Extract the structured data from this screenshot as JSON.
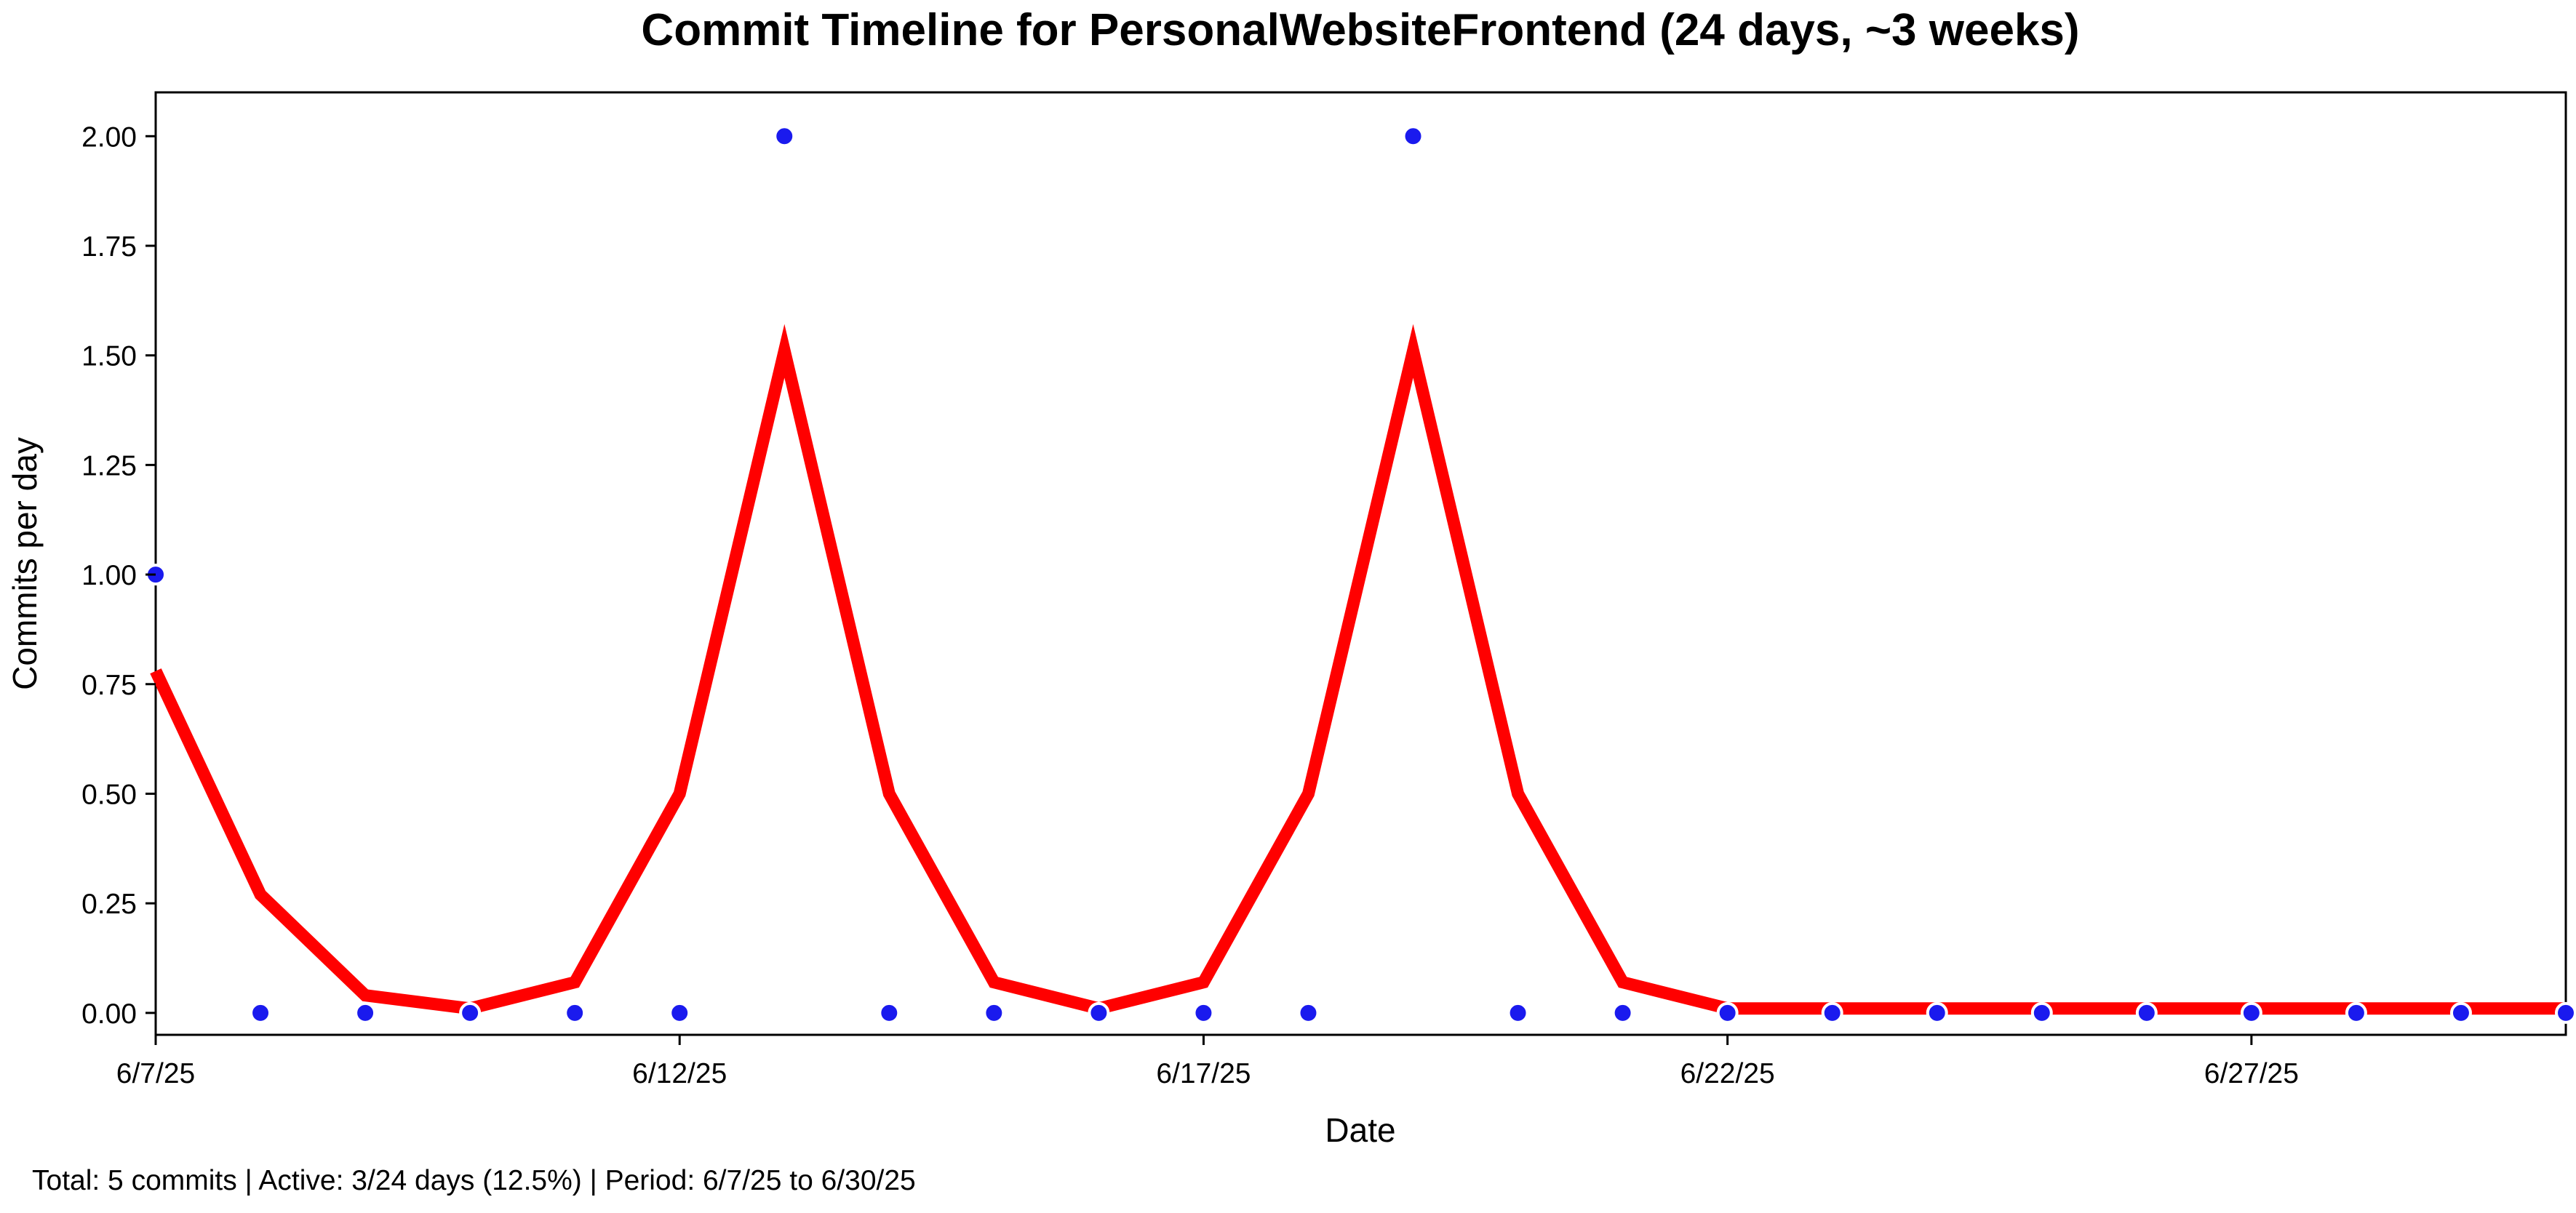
{
  "chart_data": {
    "type": "line",
    "title": "Commit Timeline for PersonalWebsiteFrontend (24 days, ~3 weeks)",
    "xlabel": "Date",
    "ylabel": "Commits per day",
    "x": [
      "6/7/25",
      "6/8/25",
      "6/9/25",
      "6/10/25",
      "6/11/25",
      "6/12/25",
      "6/13/25",
      "6/14/25",
      "6/15/25",
      "6/16/25",
      "6/17/25",
      "6/18/25",
      "6/19/25",
      "6/20/25",
      "6/21/25",
      "6/22/25",
      "6/23/25",
      "6/24/25",
      "6/25/25",
      "6/26/25",
      "6/27/25",
      "6/28/25",
      "6/29/25",
      "6/30/25"
    ],
    "xtick_labels": [
      "6/7/25",
      "6/12/25",
      "6/17/25",
      "6/22/25",
      "6/27/25"
    ],
    "ylim": [
      -0.05,
      2.1
    ],
    "yticks": [
      0.0,
      0.25,
      0.5,
      0.75,
      1.0,
      1.25,
      1.5,
      1.75,
      2.0
    ],
    "ytick_labels": [
      "0.00",
      "0.25",
      "0.50",
      "0.75",
      "1.00",
      "1.25",
      "1.50",
      "1.75",
      "2.00"
    ],
    "grid": false,
    "series": [
      {
        "kind": "scatter",
        "color": "#1a1aee",
        "values": [
          1,
          0,
          0,
          0,
          0,
          0,
          2,
          0,
          0,
          0,
          0,
          0,
          2,
          0,
          0,
          0,
          0,
          0,
          0,
          0,
          0,
          0,
          0,
          0
        ]
      },
      {
        "kind": "line",
        "color": "#ff0000",
        "values": [
          0.78,
          0.27,
          0.04,
          0.01,
          0.07,
          0.5,
          1.51,
          0.5,
          0.07,
          0.01,
          0.07,
          0.5,
          1.51,
          0.5,
          0.07,
          0.01,
          0.01,
          0.01,
          0.01,
          0.01,
          0.01,
          0.01,
          0.01,
          0.01
        ]
      }
    ]
  },
  "footer": "Total: 5 commits | Active: 3/24 days (12.5%) | Period: 6/7/25 to 6/30/25"
}
